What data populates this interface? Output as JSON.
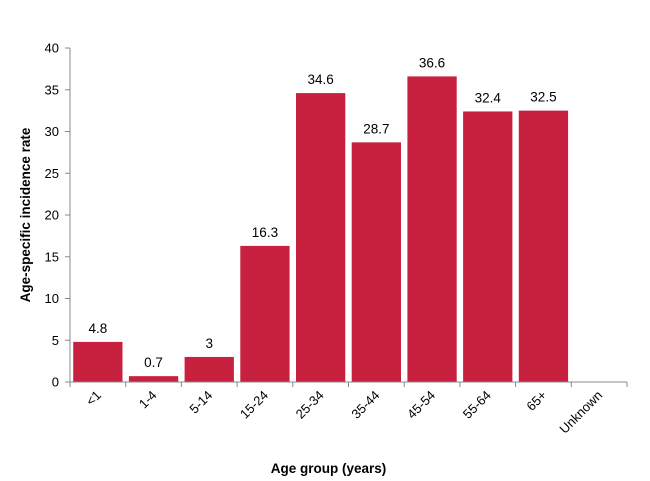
{
  "chart_data": {
    "type": "bar",
    "categories": [
      "<1",
      "1-4",
      "5-14",
      "15-24",
      "25-34",
      "35-44",
      "45-54",
      "55-64",
      "65+",
      "Unknown"
    ],
    "values": [
      4.8,
      0.7,
      3,
      16.3,
      34.6,
      28.7,
      36.6,
      32.4,
      32.5,
      null
    ],
    "data_labels": [
      "4.8",
      "0.7",
      "3",
      "16.3",
      "34.6",
      "28.7",
      "36.6",
      "32.4",
      "32.5",
      ""
    ],
    "xlabel": "Age group (years)",
    "ylabel": "Age-specific incidence rate",
    "ylim": [
      0,
      40
    ],
    "yticks": [
      0,
      5,
      10,
      15,
      20,
      25,
      30,
      35,
      40
    ],
    "grid": false,
    "legend": "none",
    "bar_color": "#c8203f"
  }
}
